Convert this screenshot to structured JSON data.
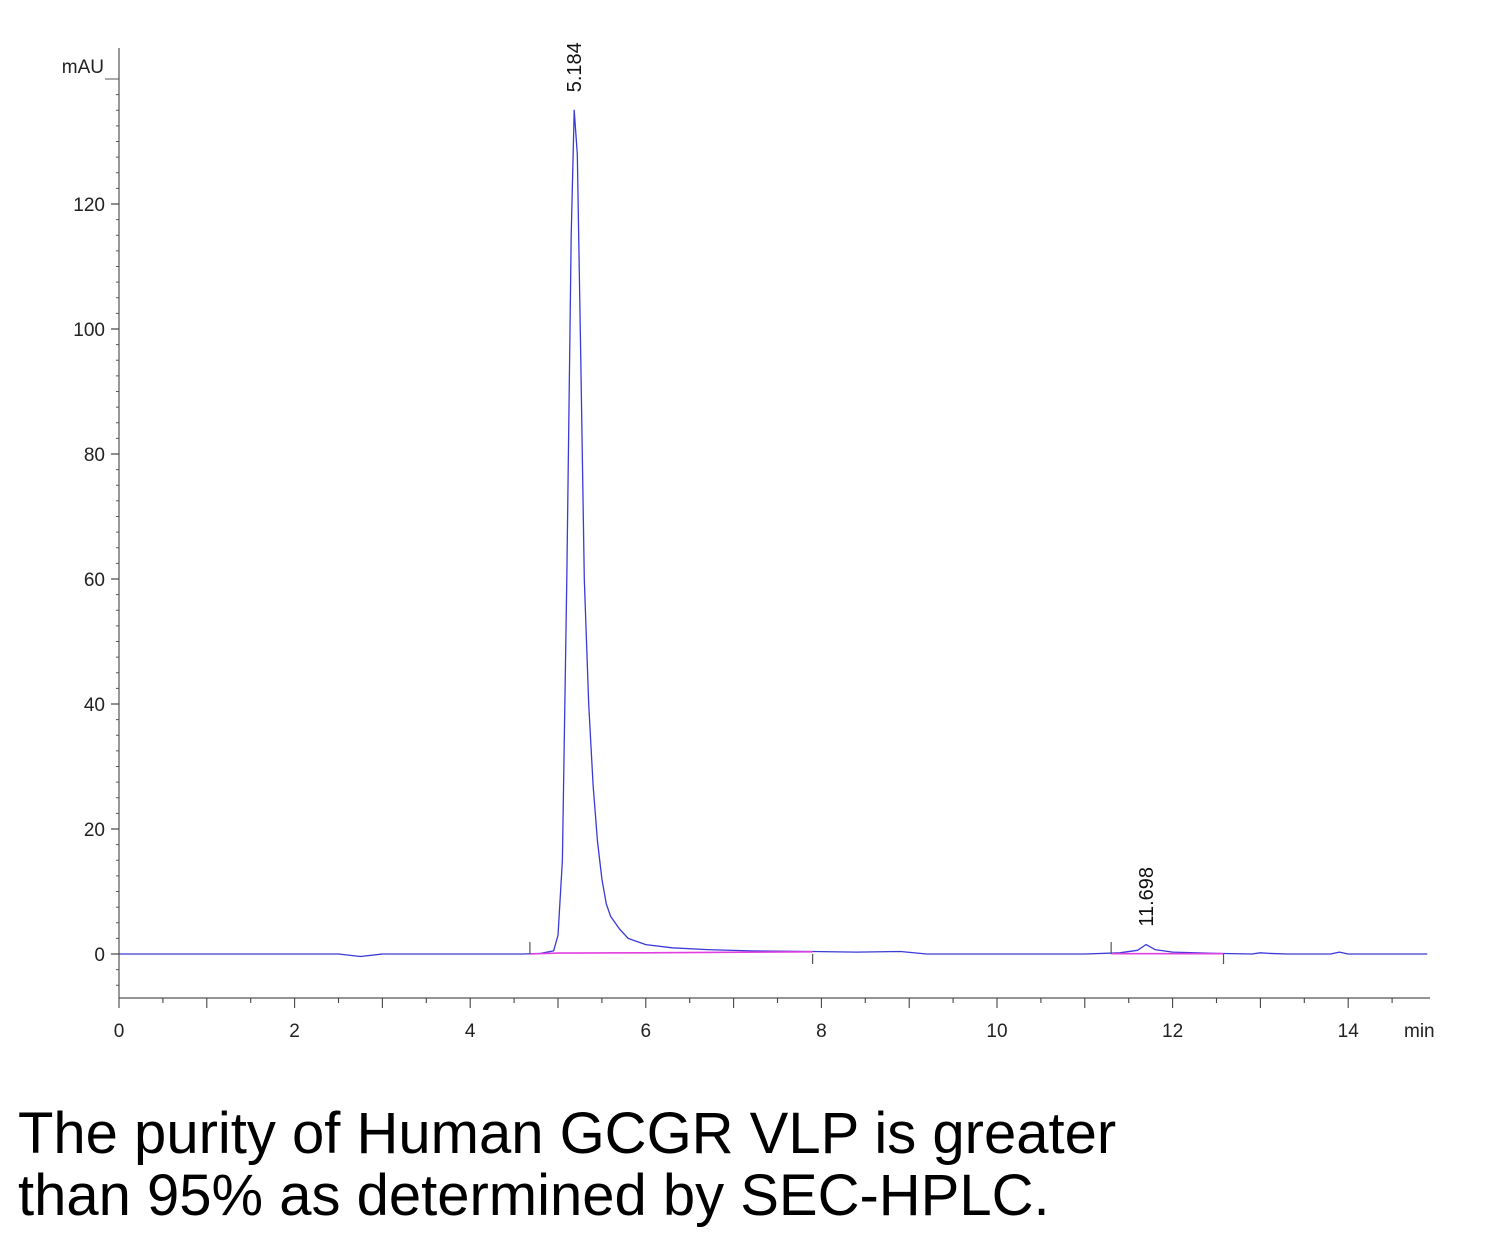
{
  "chart_data": {
    "type": "line",
    "ylabel": "mAU",
    "xunit": "min",
    "xlim": [
      0,
      14.9
    ],
    "ylim": [
      -7,
      140
    ],
    "xticks": [
      0,
      2,
      4,
      6,
      8,
      10,
      12,
      14
    ],
    "yticks": [
      0,
      20,
      40,
      60,
      80,
      100,
      120
    ],
    "series": [
      {
        "color": "#3a3ad8",
        "x": [
          0,
          2.5,
          2.75,
          3.0,
          4.6,
          4.8,
          4.95,
          5.0,
          5.05,
          5.1,
          5.15,
          5.184,
          5.22,
          5.26,
          5.3,
          5.35,
          5.4,
          5.45,
          5.5,
          5.55,
          5.6,
          5.7,
          5.8,
          6.0,
          6.3,
          6.7,
          7.2,
          7.9,
          8.4,
          8.9,
          9.2,
          10.0,
          11.0,
          11.4,
          11.6,
          11.698,
          11.8,
          12.0,
          12.5,
          12.9,
          13.0,
          13.1,
          13.3,
          13.8,
          13.9,
          14.0,
          14.9
        ],
        "y": [
          0,
          0,
          -0.4,
          0,
          0,
          0.1,
          0.5,
          3,
          15,
          60,
          115,
          135,
          128,
          95,
          60,
          40,
          27,
          18,
          12,
          8,
          6,
          4,
          2.5,
          1.5,
          1.0,
          0.7,
          0.5,
          0.4,
          0.3,
          0.4,
          0,
          0,
          0,
          0.2,
          0.6,
          1.5,
          0.7,
          0.3,
          0.1,
          0,
          0.2,
          0.1,
          0,
          0,
          0.3,
          0,
          0
        ]
      },
      {
        "color": "#e040e0",
        "x": [
          4.68,
          5.0,
          6.0,
          7.9
        ],
        "y": [
          0,
          0.15,
          0.2,
          0.35
        ]
      },
      {
        "color": "#e040e0",
        "x": [
          11.3,
          12.58
        ],
        "y": [
          0.05,
          0.05
        ]
      }
    ],
    "peaks": [
      {
        "rt": "5.184",
        "x": 5.184,
        "y": 135
      },
      {
        "rt": "11.698",
        "x": 11.698,
        "y": 1.5
      }
    ],
    "integration_marks": [
      4.68,
      7.9,
      11.3,
      12.58
    ]
  },
  "caption": {
    "line1": "The purity of Human GCGR VLP is greater",
    "line2": "than 95% as determined by SEC-HPLC."
  }
}
